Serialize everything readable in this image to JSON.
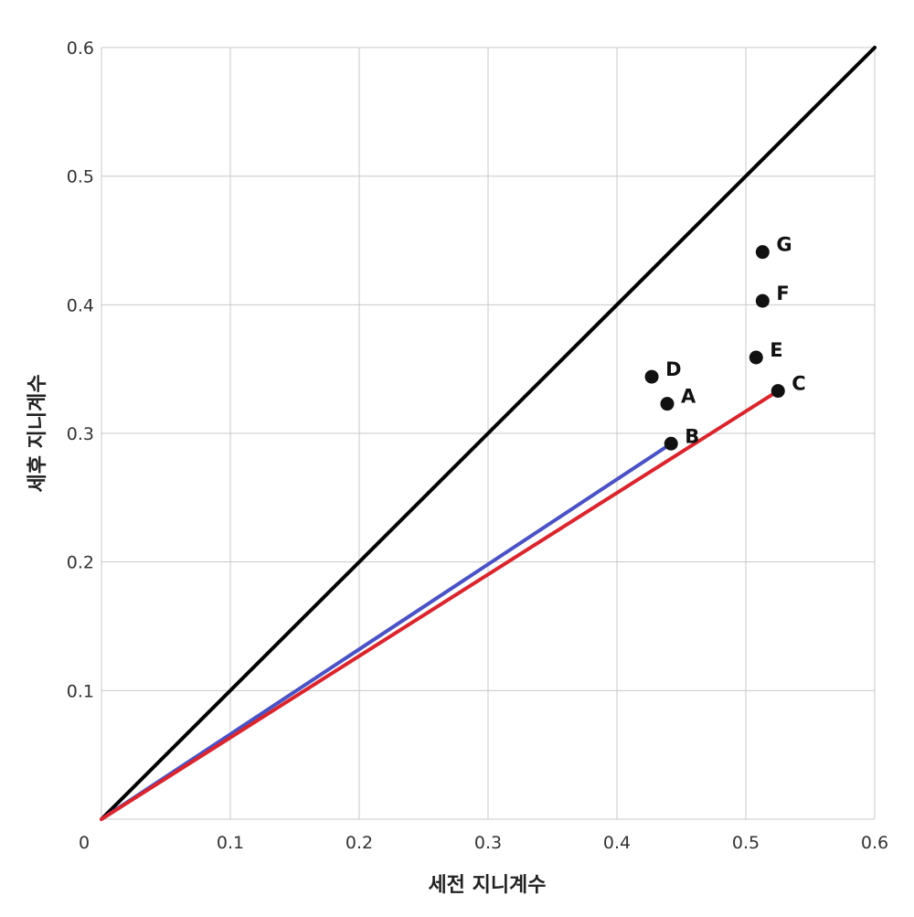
{
  "chart_data": {
    "type": "scatter",
    "xlabel": "세전 지니계수",
    "ylabel": "세후 지니계수",
    "xlim": [
      0,
      0.6
    ],
    "ylim": [
      0,
      0.6
    ],
    "x_ticks": [
      "0",
      "0.1",
      "0.2",
      "0.3",
      "0.4",
      "0.5",
      "0.6"
    ],
    "y_ticks": [
      "0.1",
      "0.2",
      "0.3",
      "0.4",
      "0.5",
      "0.6"
    ],
    "grid": true,
    "points": [
      {
        "label": "A",
        "x": 0.439,
        "y": 0.323
      },
      {
        "label": "B",
        "x": 0.442,
        "y": 0.292
      },
      {
        "label": "C",
        "x": 0.525,
        "y": 0.333
      },
      {
        "label": "D",
        "x": 0.427,
        "y": 0.344
      },
      {
        "label": "E",
        "x": 0.508,
        "y": 0.359
      },
      {
        "label": "F",
        "x": 0.513,
        "y": 0.403
      },
      {
        "label": "G",
        "x": 0.513,
        "y": 0.441
      }
    ],
    "lines": [
      {
        "from": [
          0,
          0
        ],
        "to": [
          0.6,
          0.6
        ],
        "color": "#000000"
      },
      {
        "from": [
          0,
          0
        ],
        "to": [
          0.442,
          0.292
        ],
        "color": "#4a52c4"
      },
      {
        "from": [
          0,
          0
        ],
        "to": [
          0.525,
          0.333
        ],
        "color": "#d9262e"
      }
    ],
    "colors": {
      "points": "#111111",
      "grid": "#c8c8c8"
    }
  }
}
